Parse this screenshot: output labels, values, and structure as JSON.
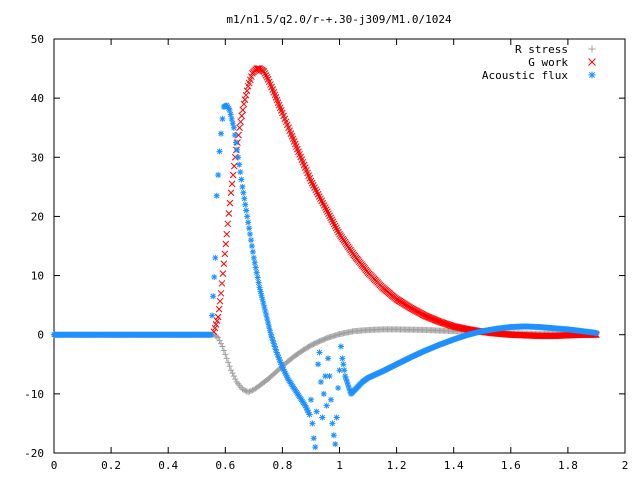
{
  "chart_data": {
    "type": "scatter",
    "title": "m1/n1.5/q2.0/r-+.30-j309/M1.0/1024",
    "xlabel": "",
    "ylabel": "",
    "xlim": [
      0,
      2
    ],
    "ylim": [
      -20,
      50
    ],
    "x_ticks": [
      "0",
      "0.2",
      "0.4",
      "0.6",
      "0.8",
      "1",
      "1.2",
      "1.4",
      "1.6",
      "1.8",
      "2"
    ],
    "y_ticks": [
      "50",
      "40",
      "30",
      "20",
      "10",
      "0",
      "-10",
      "-20"
    ],
    "grid": false,
    "legend_position": "top-right",
    "series": [
      {
        "name": "R stress",
        "marker": "+",
        "color": "#a0a0a0",
        "points": [
          [
            0.0,
            0
          ],
          [
            0.1,
            0
          ],
          [
            0.2,
            0
          ],
          [
            0.3,
            0
          ],
          [
            0.4,
            0
          ],
          [
            0.5,
            0
          ],
          [
            0.56,
            0
          ],
          [
            0.575,
            -0.5
          ],
          [
            0.59,
            -2
          ],
          [
            0.605,
            -4
          ],
          [
            0.62,
            -6
          ],
          [
            0.64,
            -8
          ],
          [
            0.66,
            -9.2
          ],
          [
            0.68,
            -9.7
          ],
          [
            0.7,
            -9.3
          ],
          [
            0.72,
            -8.6
          ],
          [
            0.75,
            -7.5
          ],
          [
            0.78,
            -6.2
          ],
          [
            0.81,
            -4.9
          ],
          [
            0.84,
            -3.7
          ],
          [
            0.87,
            -2.7
          ],
          [
            0.9,
            -1.8
          ],
          [
            0.93,
            -1.1
          ],
          [
            0.96,
            -0.5
          ],
          [
            1.0,
            0.1
          ],
          [
            1.05,
            0.6
          ],
          [
            1.1,
            0.8
          ],
          [
            1.15,
            0.9
          ],
          [
            1.2,
            0.9
          ],
          [
            1.3,
            0.8
          ],
          [
            1.4,
            0.6
          ],
          [
            1.5,
            0.4
          ],
          [
            1.6,
            0.25
          ],
          [
            1.7,
            0.15
          ],
          [
            1.8,
            0.1
          ],
          [
            1.9,
            0.1
          ]
        ]
      },
      {
        "name": "G work",
        "marker": "x",
        "color": "#ff0000",
        "points": [
          [
            0.56,
            0.5
          ],
          [
            0.575,
            3
          ],
          [
            0.585,
            7
          ],
          [
            0.595,
            12
          ],
          [
            0.605,
            17
          ],
          [
            0.62,
            24
          ],
          [
            0.635,
            30
          ],
          [
            0.65,
            35
          ],
          [
            0.665,
            39
          ],
          [
            0.68,
            42
          ],
          [
            0.695,
            44.2
          ],
          [
            0.71,
            45
          ],
          [
            0.72,
            45
          ],
          [
            0.735,
            44.5
          ],
          [
            0.75,
            43.2
          ],
          [
            0.77,
            41
          ],
          [
            0.8,
            37.5
          ],
          [
            0.83,
            34
          ],
          [
            0.86,
            30.5
          ],
          [
            0.9,
            26
          ],
          [
            0.95,
            21.5
          ],
          [
            1.0,
            17
          ],
          [
            1.05,
            13.5
          ],
          [
            1.1,
            10.5
          ],
          [
            1.15,
            8
          ],
          [
            1.2,
            6
          ],
          [
            1.25,
            4.5
          ],
          [
            1.3,
            3.2
          ],
          [
            1.35,
            2.2
          ],
          [
            1.4,
            1.4
          ],
          [
            1.45,
            0.9
          ],
          [
            1.5,
            0.5
          ],
          [
            1.55,
            0.2
          ],
          [
            1.6,
            0
          ],
          [
            1.65,
            -0.1
          ],
          [
            1.7,
            -0.2
          ],
          [
            1.75,
            -0.2
          ],
          [
            1.8,
            -0.1
          ],
          [
            1.85,
            0
          ],
          [
            1.9,
            0
          ]
        ]
      },
      {
        "name": "Acoustic flux",
        "marker": "*",
        "color": "#1e90ff",
        "points": [
          [
            0.0,
            0
          ],
          [
            0.1,
            0
          ],
          [
            0.2,
            0
          ],
          [
            0.3,
            0
          ],
          [
            0.4,
            0
          ],
          [
            0.5,
            0
          ],
          [
            0.55,
            0
          ],
          [
            0.565,
            13
          ],
          [
            0.57,
            23.5
          ],
          [
            0.575,
            27
          ],
          [
            0.58,
            31
          ],
          [
            0.585,
            34
          ],
          [
            0.59,
            36.5
          ],
          [
            0.595,
            38.5
          ],
          [
            0.605,
            38.8
          ],
          [
            0.615,
            38
          ],
          [
            0.63,
            35
          ],
          [
            0.645,
            30
          ],
          [
            0.66,
            25
          ],
          [
            0.68,
            19
          ],
          [
            0.7,
            13
          ],
          [
            0.72,
            8
          ],
          [
            0.74,
            4
          ],
          [
            0.76,
            0
          ],
          [
            0.78,
            -3
          ],
          [
            0.8,
            -5.5
          ],
          [
            0.82,
            -7.5
          ],
          [
            0.84,
            -9
          ],
          [
            0.86,
            -10.5
          ],
          [
            0.88,
            -12
          ],
          [
            0.895,
            -13.5
          ],
          [
            0.9,
            -11
          ],
          [
            0.905,
            -15
          ],
          [
            0.91,
            -17.5
          ],
          [
            0.915,
            -19
          ],
          [
            0.92,
            -13
          ],
          [
            0.925,
            -5
          ],
          [
            0.93,
            -3
          ],
          [
            0.935,
            -8
          ],
          [
            0.94,
            -14
          ],
          [
            0.945,
            -10
          ],
          [
            0.95,
            -7
          ],
          [
            0.955,
            -12
          ],
          [
            0.96,
            -4
          ],
          [
            0.965,
            -7
          ],
          [
            0.97,
            -11
          ],
          [
            0.975,
            -15
          ],
          [
            0.98,
            -17
          ],
          [
            0.985,
            -18.5
          ],
          [
            0.99,
            -14
          ],
          [
            0.995,
            -9
          ],
          [
            1.0,
            -6
          ],
          [
            1.005,
            -2
          ],
          [
            1.01,
            -4
          ],
          [
            1.02,
            -7
          ],
          [
            1.04,
            -10
          ],
          [
            1.06,
            -9
          ],
          [
            1.08,
            -8
          ],
          [
            1.1,
            -7.3
          ],
          [
            1.15,
            -6.2
          ],
          [
            1.2,
            -5
          ],
          [
            1.25,
            -3.8
          ],
          [
            1.3,
            -2.7
          ],
          [
            1.35,
            -1.7
          ],
          [
            1.4,
            -0.8
          ],
          [
            1.45,
            0
          ],
          [
            1.5,
            0.6
          ],
          [
            1.55,
            1
          ],
          [
            1.6,
            1.3
          ],
          [
            1.65,
            1.4
          ],
          [
            1.7,
            1.3
          ],
          [
            1.75,
            1.1
          ],
          [
            1.8,
            0.9
          ],
          [
            1.85,
            0.6
          ],
          [
            1.9,
            0.3
          ]
        ]
      }
    ]
  }
}
